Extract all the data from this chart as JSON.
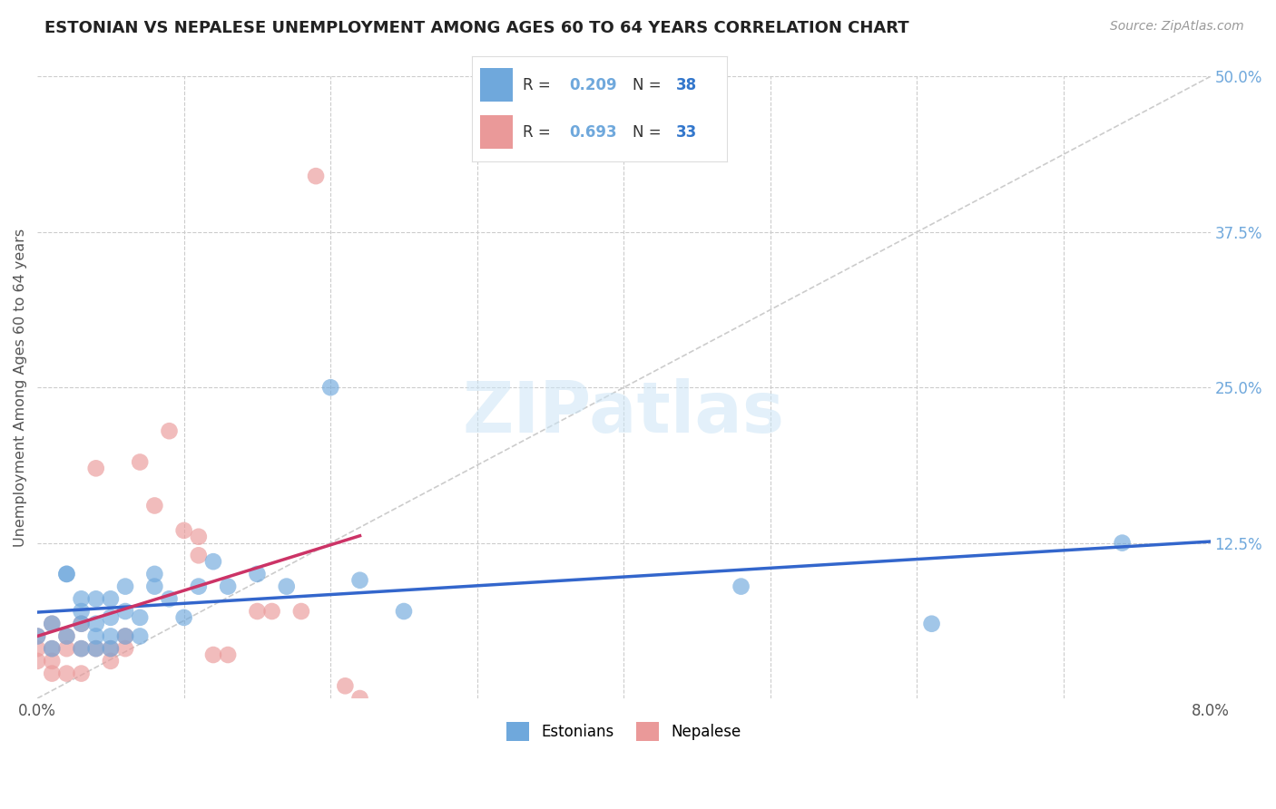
{
  "title": "ESTONIAN VS NEPALESE UNEMPLOYMENT AMONG AGES 60 TO 64 YEARS CORRELATION CHART",
  "source": "Source: ZipAtlas.com",
  "ylabel": "Unemployment Among Ages 60 to 64 years",
  "x_range": [
    0.0,
    0.08
  ],
  "y_range": [
    0.0,
    0.5
  ],
  "estonian_color": "#6fa8dc",
  "nepalese_color": "#ea9999",
  "trend_estonian_color": "#3366cc",
  "trend_nepalese_color": "#cc3366",
  "diagonal_color": "#cccccc",
  "R_estonian": 0.209,
  "N_estonian": 38,
  "R_nepalese": 0.693,
  "N_nepalese": 33,
  "estonian_x": [
    0.0,
    0.001,
    0.001,
    0.002,
    0.002,
    0.002,
    0.003,
    0.003,
    0.003,
    0.003,
    0.004,
    0.004,
    0.004,
    0.004,
    0.005,
    0.005,
    0.005,
    0.005,
    0.006,
    0.006,
    0.006,
    0.007,
    0.007,
    0.008,
    0.008,
    0.009,
    0.01,
    0.011,
    0.012,
    0.013,
    0.015,
    0.017,
    0.02,
    0.022,
    0.025,
    0.048,
    0.061,
    0.074
  ],
  "estonian_y": [
    0.05,
    0.04,
    0.06,
    0.05,
    0.1,
    0.1,
    0.04,
    0.06,
    0.07,
    0.08,
    0.04,
    0.05,
    0.06,
    0.08,
    0.04,
    0.05,
    0.065,
    0.08,
    0.05,
    0.07,
    0.09,
    0.05,
    0.065,
    0.09,
    0.1,
    0.08,
    0.065,
    0.09,
    0.11,
    0.09,
    0.1,
    0.09,
    0.25,
    0.095,
    0.07,
    0.09,
    0.06,
    0.125
  ],
  "nepalese_x": [
    0.0,
    0.0,
    0.0,
    0.001,
    0.001,
    0.001,
    0.001,
    0.002,
    0.002,
    0.002,
    0.003,
    0.003,
    0.003,
    0.004,
    0.004,
    0.005,
    0.005,
    0.006,
    0.006,
    0.007,
    0.008,
    0.009,
    0.01,
    0.011,
    0.011,
    0.012,
    0.013,
    0.015,
    0.016,
    0.018,
    0.019,
    0.021,
    0.022
  ],
  "nepalese_y": [
    0.03,
    0.04,
    0.05,
    0.02,
    0.03,
    0.04,
    0.06,
    0.02,
    0.04,
    0.05,
    0.02,
    0.04,
    0.06,
    0.04,
    0.185,
    0.03,
    0.04,
    0.04,
    0.05,
    0.19,
    0.155,
    0.215,
    0.135,
    0.13,
    0.115,
    0.035,
    0.035,
    0.07,
    0.07,
    0.07,
    0.42,
    0.01,
    0.0
  ],
  "watermark_text": "ZIPatlas",
  "background_color": "#ffffff",
  "grid_color": "#cccccc"
}
